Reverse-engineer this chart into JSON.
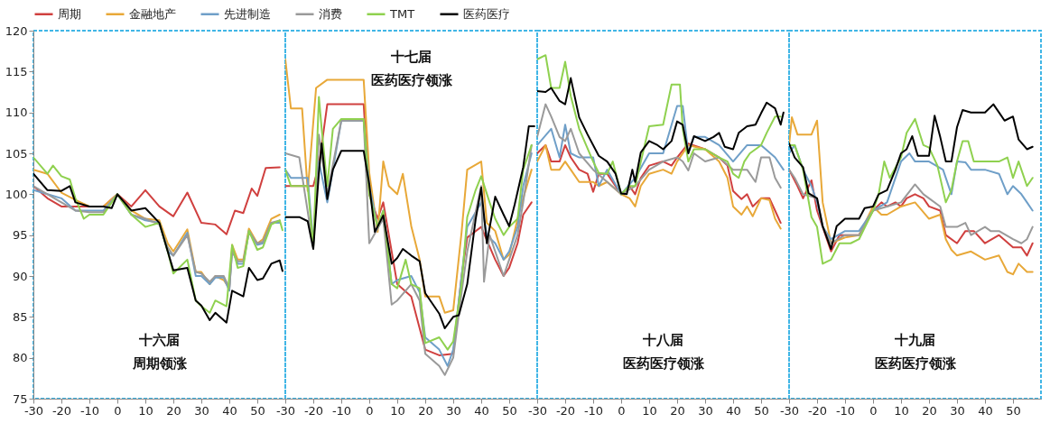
{
  "chart_data": [
    {
      "type": "line",
      "xlim": [
        -30,
        60
      ],
      "xticks": [
        -30,
        -20,
        -10,
        0,
        10,
        20,
        30,
        40,
        50
      ],
      "ylim": [
        75,
        120
      ],
      "yticks": [
        75,
        80,
        85,
        90,
        95,
        100,
        105,
        110,
        115,
        120
      ],
      "legend": "top",
      "annotations": [
        "十六届",
        "周期领涨"
      ],
      "series": [
        {
          "name": "周期",
          "color": "#d0403f",
          "x": [
            -30,
            -25,
            -20,
            -15,
            -10,
            -5,
            0,
            5,
            10,
            15,
            20,
            25,
            30,
            35,
            39,
            42,
            45,
            48,
            50,
            53,
            58
          ],
          "values": [
            101,
            99.5,
            98.5,
            98.5,
            98.5,
            98.5,
            100,
            98.5,
            100.5,
            98.5,
            97.3,
            100.2,
            96.5,
            96.3,
            95.1,
            98,
            97.7,
            100.7,
            99.8,
            103.2,
            103.3
          ]
        },
        {
          "name": "金融地产",
          "color": "#e8a838",
          "x": [
            -30,
            -25,
            -20,
            -15,
            -10,
            -5,
            0,
            5,
            10,
            15,
            18,
            20,
            25,
            28,
            30,
            33,
            35,
            38,
            40,
            41,
            43,
            45,
            47,
            50,
            52,
            55,
            58
          ],
          "values": [
            103,
            102.5,
            100.2,
            99.3,
            98.5,
            98.5,
            100,
            98,
            97,
            96.8,
            94,
            93,
            95.7,
            90.5,
            90.5,
            89,
            90,
            89.5,
            88.5,
            93.8,
            92,
            92,
            95.8,
            94,
            94.5,
            97,
            97.5
          ]
        },
        {
          "name": "先进制造",
          "color": "#6f9fc8",
          "x": [
            -30,
            -25,
            -20,
            -15,
            -10,
            -5,
            0,
            5,
            10,
            15,
            18,
            20,
            25,
            28,
            30,
            33,
            35,
            38,
            40,
            41,
            43,
            45,
            47,
            50,
            52,
            55,
            58
          ],
          "values": [
            100.5,
            100,
            99.5,
            98,
            98,
            98,
            100,
            97.5,
            96.8,
            96.5,
            93,
            92.5,
            95.3,
            90,
            90,
            89,
            89.8,
            89.8,
            88.2,
            93.2,
            91.5,
            91.5,
            95.5,
            93.8,
            94,
            96.5,
            96.5
          ]
        },
        {
          "name": "消费",
          "color": "#9a9a9a",
          "x": [
            -30,
            -25,
            -20,
            -15,
            -10,
            -5,
            0,
            5,
            10,
            15,
            18,
            20,
            25,
            28,
            30,
            33,
            35,
            38,
            40,
            41,
            43,
            45,
            47,
            50,
            52,
            55,
            58
          ],
          "values": [
            101,
            100,
            99,
            98,
            97.8,
            97.8,
            100,
            97.5,
            97,
            96.3,
            93.5,
            92.5,
            95,
            90.5,
            90.3,
            89.3,
            90,
            90,
            88.5,
            93,
            91.8,
            91.8,
            95.3,
            94,
            94.2,
            96.5,
            96.8
          ]
        },
        {
          "name": "TMT",
          "color": "#8fd14f",
          "x": [
            -30,
            -25,
            -23,
            -20,
            -17,
            -15,
            -12,
            -10,
            -5,
            0,
            5,
            10,
            15,
            18,
            20,
            25,
            28,
            30,
            33,
            35,
            39,
            41,
            43,
            45,
            47,
            50,
            52,
            55,
            58,
            59
          ],
          "values": [
            104.5,
            102.5,
            103.5,
            102.2,
            101.8,
            99.5,
            97,
            97.5,
            97.5,
            100,
            97.5,
            96,
            96.5,
            93,
            90.3,
            92,
            87,
            86.3,
            85.5,
            87,
            86.3,
            93.8,
            91,
            91.2,
            95.5,
            93.2,
            93.5,
            96.3,
            96.8,
            95.6
          ]
        },
        {
          "name": "医药医疗",
          "color": "#000000",
          "x": [
            -30,
            -25,
            -20,
            -17,
            -15,
            -10,
            -5,
            -2,
            0,
            5,
            10,
            15,
            18,
            20,
            25,
            28,
            30,
            33,
            35,
            39,
            41,
            45,
            47,
            50,
            52,
            55,
            58,
            59
          ],
          "values": [
            102.5,
            100.5,
            100.4,
            101,
            99,
            98.5,
            98.5,
            98.3,
            100,
            98,
            98.3,
            96.5,
            93,
            90.7,
            91,
            87,
            86.4,
            84.6,
            85.5,
            84.3,
            88.2,
            87.5,
            91,
            89.5,
            89.7,
            91.5,
            91.9,
            90.6
          ]
        }
      ]
    },
    {
      "type": "line",
      "xlim": [
        -30,
        60
      ],
      "xticks": [
        -30,
        -20,
        -10,
        0,
        10,
        20,
        30,
        40,
        50
      ],
      "ylim": [
        75,
        120
      ],
      "yticks": [
        75,
        80,
        85,
        90,
        95,
        100,
        105,
        110,
        115,
        120
      ],
      "tick_labels": "x",
      "annotations": [
        "十七届",
        "医药医疗领涨"
      ],
      "series": [
        {
          "name": "周期",
          "color": "#d0403f",
          "x": [
            -30,
            -28,
            -20,
            -18,
            -15,
            -2,
            0,
            3,
            5,
            10,
            15,
            20,
            25,
            30,
            33,
            35,
            40,
            45,
            48,
            50,
            53,
            55,
            58
          ],
          "values": [
            101,
            101,
            101,
            103.5,
            111,
            111,
            100,
            97,
            99,
            89,
            87.5,
            81,
            80.3,
            80.5,
            90,
            94.7,
            96,
            92,
            90,
            91,
            94,
            97.5,
            99
          ]
        },
        {
          "name": "金融地产",
          "color": "#e8a838",
          "x": [
            -30,
            -28,
            -24,
            -22,
            -19,
            -15,
            -2,
            0,
            3,
            5,
            7,
            10,
            12,
            15,
            18,
            20,
            25,
            27,
            30,
            33,
            35,
            40,
            42,
            45,
            48,
            50,
            53,
            55,
            58
          ],
          "values": [
            116.5,
            110.5,
            110.5,
            100.4,
            113,
            114,
            114,
            102.6,
            95.4,
            104,
            101,
            100,
            102.5,
            96.1,
            92,
            87.5,
            87.5,
            85.5,
            85.8,
            95.4,
            103,
            104,
            96.5,
            95.5,
            92,
            92.6,
            97,
            99.5,
            103
          ]
        },
        {
          "name": "先进制造",
          "color": "#6f9fc8",
          "x": [
            -30,
            -28,
            -22,
            -20,
            -18,
            -15,
            -10,
            -2,
            0,
            3,
            5,
            8,
            10,
            15,
            18,
            20,
            25,
            28,
            30,
            33,
            35,
            40,
            42,
            45,
            48,
            50,
            53,
            55,
            58
          ],
          "values": [
            103,
            102,
            102,
            94,
            104,
            99,
            109,
            109,
            101,
            96,
            98,
            89,
            89.5,
            90,
            88,
            82.5,
            81,
            79,
            81,
            90,
            96,
            99,
            95,
            94,
            92,
            93,
            96,
            101,
            105
          ]
        },
        {
          "name": "消费",
          "color": "#9a9a9a",
          "x": [
            -30,
            -25,
            -20,
            -18,
            -15,
            -10,
            -2,
            0,
            5,
            8,
            10,
            15,
            18,
            20,
            25,
            27,
            30,
            33,
            35,
            40,
            41,
            43,
            45,
            48,
            50,
            53,
            55,
            58
          ],
          "values": [
            105,
            104.5,
            93.5,
            107.3,
            100,
            109,
            109,
            94,
            97,
            86.5,
            87,
            89,
            87,
            80.5,
            79,
            77.9,
            80,
            88,
            93,
            101,
            89.3,
            95,
            93,
            90,
            92,
            95,
            99,
            106
          ]
        },
        {
          "name": "TMT",
          "color": "#8fd14f",
          "x": [
            -30,
            -28,
            -22,
            -20,
            -18,
            -17,
            -15,
            -13,
            -10,
            -2,
            0,
            3,
            5,
            8,
            10,
            13,
            15,
            18,
            20,
            25,
            28,
            30,
            33,
            35,
            38,
            40,
            43,
            45,
            48,
            50,
            53,
            55,
            58
          ],
          "values": [
            103,
            101,
            101,
            93.5,
            111.9,
            108,
            101,
            108,
            109.2,
            109.2,
            100,
            96,
            98,
            89,
            88.5,
            92,
            89,
            88.5,
            81.8,
            82.5,
            81,
            82,
            89,
            97.2,
            100.5,
            102.2,
            99,
            97,
            95,
            96,
            97,
            103,
            106
          ]
        },
        {
          "name": "医药医疗",
          "color": "#000000",
          "x": [
            -30,
            -25,
            -22,
            -20,
            -18,
            -17,
            -15,
            -13,
            -10,
            -2,
            0,
            2,
            5,
            8,
            10,
            12,
            15,
            18,
            20,
            25,
            27,
            30,
            32,
            35,
            38,
            40,
            42,
            45,
            48,
            50,
            52,
            55,
            57,
            59
          ],
          "values": [
            97.2,
            97.2,
            96.7,
            93.3,
            102.6,
            106.2,
            99.4,
            103,
            105.3,
            105.3,
            101.2,
            95.4,
            97.4,
            91.5,
            92.2,
            93.3,
            92.5,
            91.8,
            87.9,
            85.4,
            83.6,
            85,
            85.2,
            89,
            96.9,
            100.8,
            94,
            99.7,
            97.5,
            96.1,
            98.8,
            103.3,
            108.3,
            108.3
          ]
        }
      ]
    },
    {
      "type": "line",
      "xlim": [
        -30,
        60
      ],
      "xticks": [
        -30,
        -20,
        -10,
        0,
        10,
        20,
        30,
        40,
        50
      ],
      "ylim": [
        75,
        120
      ],
      "yticks": [
        75,
        80,
        85,
        90,
        95,
        100,
        105,
        110,
        115,
        120
      ],
      "tick_labels": "x",
      "annotations": [
        "十八届",
        "医药医疗领涨"
      ],
      "series": [
        {
          "name": "周期",
          "color": "#d0403f",
          "x": [
            -30,
            -27,
            -25,
            -22,
            -20,
            -18,
            -15,
            -12,
            -10,
            -8,
            -5,
            0,
            3,
            5,
            7,
            10,
            15,
            18,
            20,
            24,
            30,
            35,
            38,
            40,
            43,
            45,
            47,
            50,
            53,
            55,
            57
          ],
          "values": [
            105,
            106,
            104,
            104,
            106,
            104.5,
            103,
            102.5,
            100.3,
            102.5,
            102.5,
            100,
            101,
            100,
            102,
            103.5,
            104,
            103.5,
            104.5,
            106.2,
            105.5,
            104.5,
            103.5,
            100.4,
            99.4,
            100,
            98.5,
            99.5,
            99.5,
            98,
            96.5
          ]
        },
        {
          "name": "金融地产",
          "color": "#e8a838",
          "x": [
            -30,
            -27,
            -25,
            -22,
            -20,
            -18,
            -15,
            -10,
            -8,
            -5,
            0,
            3,
            5,
            7,
            10,
            15,
            18,
            20,
            24,
            30,
            35,
            38,
            40,
            43,
            45,
            47,
            50,
            53,
            55,
            57
          ],
          "values": [
            104,
            106,
            103,
            103,
            104,
            103,
            101.5,
            101.5,
            101,
            101.5,
            100,
            99.5,
            98.5,
            101,
            102.5,
            103,
            102.5,
            104,
            106,
            105.5,
            104,
            102,
            98.5,
            97.5,
            98.5,
            97.3,
            99.5,
            99.3,
            97,
            95.8
          ]
        },
        {
          "name": "先进制造",
          "color": "#6f9fc8",
          "x": [
            -30,
            -25,
            -22,
            -20,
            -18,
            -15,
            -10,
            -8,
            -5,
            0,
            5,
            10,
            15,
            20,
            22,
            24,
            26,
            30,
            35,
            40,
            45,
            50,
            55,
            58
          ],
          "values": [
            106,
            108,
            104.5,
            108.5,
            105,
            104.5,
            104.5,
            101,
            103,
            100,
            102,
            105,
            105,
            110.8,
            110.8,
            105,
            107,
            107,
            106,
            104,
            106,
            106,
            104.5,
            103
          ]
        },
        {
          "name": "消费",
          "color": "#9a9a9a",
          "x": [
            -30,
            -27,
            -25,
            -22,
            -20,
            -18,
            -15,
            -10,
            -5,
            0,
            5,
            10,
            15,
            20,
            22,
            24,
            26,
            30,
            35,
            40,
            45,
            48,
            50,
            53,
            55,
            57
          ],
          "values": [
            107,
            111,
            109.5,
            107,
            106.5,
            108,
            105,
            103,
            101.5,
            100,
            101,
            103,
            104,
            104.5,
            104,
            102.9,
            105,
            104,
            104.5,
            103,
            103,
            101.5,
            104.5,
            104.5,
            102,
            100.8
          ]
        },
        {
          "name": "TMT",
          "color": "#8fd14f",
          "x": [
            -30,
            -27,
            -25,
            -22,
            -20,
            -18,
            -15,
            -10,
            -8,
            -5,
            -3,
            0,
            3,
            5,
            10,
            15,
            18,
            21,
            22,
            24,
            26,
            30,
            35,
            38,
            40,
            42,
            44,
            46,
            50,
            52,
            55,
            57
          ],
          "values": [
            116.5,
            117,
            113,
            113,
            116.2,
            112,
            108,
            104,
            102.6,
            102.5,
            104,
            100,
            101,
            101,
            108.3,
            108.5,
            113.4,
            113.4,
            108,
            104,
            105.5,
            105.5,
            104.5,
            104,
            102.5,
            102,
            104,
            105,
            106,
            107.5,
            109.5,
            109.5
          ]
        },
        {
          "name": "医药医疗",
          "color": "#000000",
          "x": [
            -30,
            -27,
            -25,
            -22,
            -20,
            -18,
            -15,
            -12,
            -8,
            -5,
            -2,
            0,
            2,
            4,
            5,
            7,
            10,
            13,
            15,
            18,
            20,
            22,
            24,
            26,
            30,
            33,
            35,
            37,
            40,
            42,
            45,
            48,
            50,
            52,
            55,
            57,
            58
          ],
          "values": [
            112.6,
            112.5,
            113,
            111.4,
            111,
            114.2,
            109.4,
            107.3,
            104.7,
            104,
            102.5,
            100.1,
            100,
            103,
            101.5,
            105.1,
            106.5,
            106,
            105.5,
            106.5,
            108.9,
            108.5,
            105,
            107.1,
            106.5,
            107,
            107.5,
            105.8,
            105.5,
            107.5,
            108.3,
            108.5,
            109.9,
            111.2,
            110.5,
            108.5,
            110
          ]
        }
      ]
    },
    {
      "type": "line",
      "xlim": [
        -30,
        60
      ],
      "xticks": [
        -30,
        -20,
        -10,
        0,
        10,
        20,
        30,
        40,
        50
      ],
      "ylim": [
        75,
        120
      ],
      "yticks": [
        75,
        80,
        85,
        90,
        95,
        100,
        105,
        110,
        115,
        120
      ],
      "tick_labels": "x",
      "annotations": [
        "十九届",
        "医药医疗领涨"
      ],
      "series": [
        {
          "name": "周期",
          "color": "#d0403f",
          "x": [
            -30,
            -27,
            -25,
            -22,
            -20,
            -18,
            -15,
            -12,
            -5,
            0,
            3,
            5,
            8,
            10,
            12,
            15,
            18,
            20,
            24,
            26,
            30,
            33,
            36,
            40,
            45,
            50,
            53,
            55,
            57
          ],
          "values": [
            103,
            101,
            99.5,
            101.7,
            98,
            96,
            93,
            95,
            95,
            98,
            99,
            98.5,
            99,
            98.5,
            99.5,
            100,
            99.5,
            98.5,
            98,
            95,
            94,
            95.5,
            95.5,
            94,
            95,
            93.5,
            93.5,
            92.5,
            94
          ]
        },
        {
          "name": "金融地产",
          "color": "#e8a838",
          "x": [
            -30,
            -29,
            -27,
            -22,
            -20,
            -18,
            -15,
            -13,
            -10,
            -5,
            0,
            3,
            5,
            10,
            15,
            20,
            24,
            26,
            28,
            30,
            35,
            40,
            45,
            48,
            50,
            52,
            55,
            57
          ],
          "values": [
            106,
            109.4,
            107.3,
            107.3,
            109,
            99,
            94,
            94.3,
            94.7,
            95,
            98.5,
            97.5,
            97.5,
            98.5,
            99,
            97,
            97.5,
            94.5,
            93.2,
            92.5,
            93,
            92,
            92.5,
            90.5,
            90.2,
            91.5,
            90.5,
            90.5
          ]
        },
        {
          "name": "先进制造",
          "color": "#6f9fc8",
          "x": [
            -30,
            -28,
            -25,
            -22,
            -20,
            -18,
            -15,
            -10,
            -5,
            0,
            5,
            10,
            13,
            15,
            20,
            25,
            28,
            30,
            33,
            35,
            40,
            45,
            48,
            50,
            53,
            55,
            57
          ],
          "values": [
            105,
            106,
            103,
            101,
            99,
            96,
            94.5,
            95.5,
            95.5,
            98,
            99,
            104,
            105,
            104,
            104,
            103,
            100,
            104,
            103.9,
            103,
            103,
            102.5,
            100,
            101,
            100,
            99,
            98
          ]
        },
        {
          "name": "消费",
          "color": "#9a9a9a",
          "x": [
            -30,
            -28,
            -25,
            -20,
            -18,
            -15,
            -10,
            -5,
            0,
            5,
            10,
            15,
            18,
            20,
            24,
            26,
            30,
            33,
            35,
            40,
            42,
            45,
            50,
            53,
            55,
            57
          ],
          "values": [
            103,
            102,
            100,
            99.5,
            96,
            94,
            95,
            95,
            98,
            98.5,
            99,
            101.2,
            100,
            99.5,
            98.5,
            96,
            96,
            96.5,
            95,
            96,
            95.5,
            95.5,
            94.5,
            94,
            94.5,
            96
          ]
        },
        {
          "name": "TMT",
          "color": "#8fd14f",
          "x": [
            -30,
            -28,
            -25,
            -22,
            -20,
            -18,
            -15,
            -12,
            -8,
            -5,
            0,
            2,
            4,
            6,
            10,
            12,
            15,
            18,
            20,
            23,
            26,
            28,
            30,
            32,
            34,
            36,
            40,
            45,
            48,
            50,
            52,
            55,
            57
          ],
          "values": [
            106,
            106,
            103,
            97.2,
            96,
            91.5,
            92,
            94,
            94,
            94.5,
            98,
            100,
            104,
            102,
            104.5,
            107.5,
            109.2,
            106,
            105.7,
            103.5,
            99,
            100.5,
            104,
            106.5,
            106.5,
            104,
            104,
            104,
            104.5,
            102,
            104,
            101,
            102
          ]
        },
        {
          "name": "医药医疗",
          "color": "#000000",
          "x": [
            -30,
            -28,
            -25,
            -23,
            -20,
            -18,
            -15,
            -13,
            -10,
            -5,
            -3,
            0,
            2,
            5,
            8,
            10,
            12,
            14,
            16,
            20,
            22,
            24,
            26,
            28,
            30,
            32,
            35,
            40,
            43,
            45,
            47,
            50,
            52,
            55,
            57
          ],
          "values": [
            106.2,
            104.5,
            103.3,
            100.1,
            99.5,
            96.1,
            93.3,
            96.1,
            97,
            97,
            98.3,
            98.5,
            100,
            100.5,
            103,
            105,
            105.5,
            107.1,
            104.7,
            104.7,
            109.6,
            107,
            104,
            104,
            108.2,
            110.3,
            110,
            110,
            111,
            110,
            109,
            109.5,
            106.7,
            105.5,
            105.8
          ]
        }
      ]
    }
  ]
}
